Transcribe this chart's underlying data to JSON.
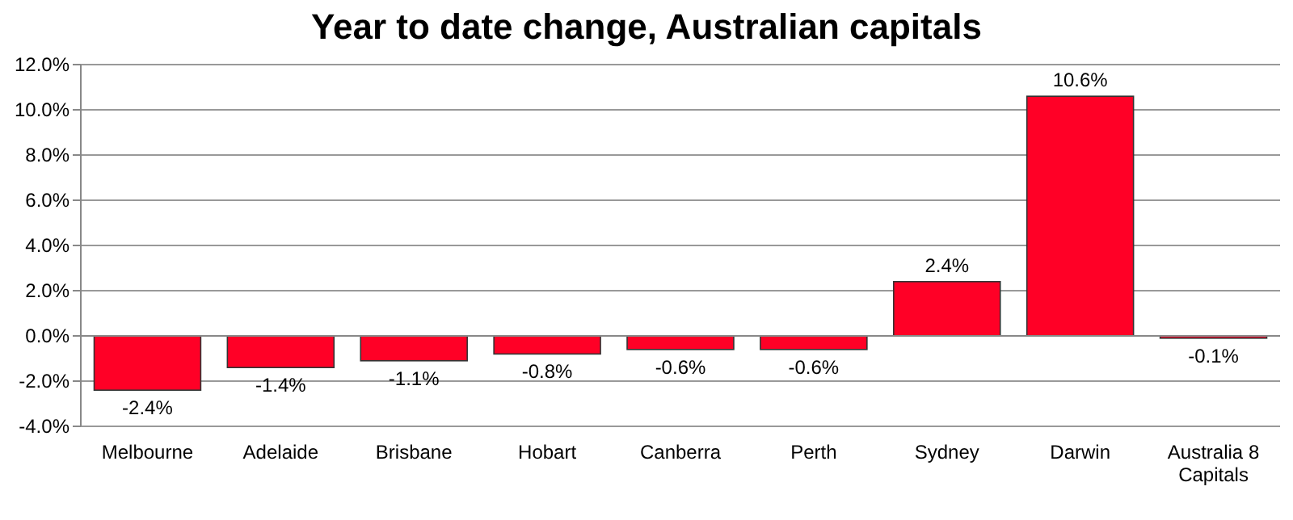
{
  "chart_data": {
    "type": "bar",
    "title": "Year to date change, Australian capitals",
    "categories": [
      "Melbourne",
      "Adelaide",
      "Brisbane",
      "Hobart",
      "Canberra",
      "Perth",
      "Sydney",
      "Darwin",
      "Australia 8 Capitals"
    ],
    "values": [
      -2.4,
      -1.4,
      -1.1,
      -0.8,
      -0.6,
      -0.6,
      2.4,
      10.6,
      -0.1
    ],
    "value_labels": [
      "-2.4%",
      "-1.4%",
      "-1.1%",
      "-0.8%",
      "-0.6%",
      "-0.6%",
      "2.4%",
      "10.6%",
      "-0.1%"
    ],
    "color": "#ff0026",
    "ylim": [
      -4,
      12
    ],
    "yticks": [
      {
        "value": -4,
        "label": "-4.0%"
      },
      {
        "value": -2,
        "label": "-2.0%"
      },
      {
        "value": 0,
        "label": "0.0%"
      },
      {
        "value": 2,
        "label": "2.0%"
      },
      {
        "value": 4,
        "label": "4.0%"
      },
      {
        "value": 6,
        "label": "6.0%"
      },
      {
        "value": 8,
        "label": "8.0%"
      },
      {
        "value": 10,
        "label": "10.0%"
      },
      {
        "value": 12,
        "label": "12.0%"
      }
    ],
    "grid": "y"
  }
}
